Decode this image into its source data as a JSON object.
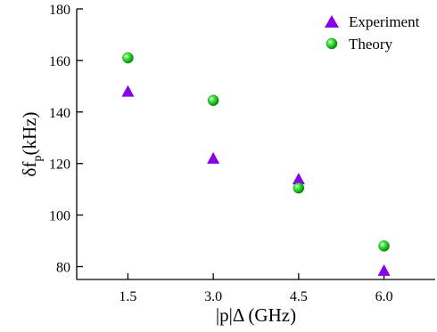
{
  "chart_data": {
    "type": "scatter",
    "title": "",
    "xlabel": "|p|Δ (GHz)",
    "ylabel": {
      "main": "δf",
      "sub": "p",
      "unit": "(kHz)"
    },
    "xlim": [
      0.6,
      6.9
    ],
    "ylim": [
      75,
      180
    ],
    "x_ticks": [
      {
        "value": 1.5,
        "label": "1.5"
      },
      {
        "value": 3.0,
        "label": "3.0"
      },
      {
        "value": 4.5,
        "label": "4.5"
      },
      {
        "value": 6.0,
        "label": "6.0"
      }
    ],
    "y_ticks": [
      {
        "value": 80,
        "label": "80"
      },
      {
        "value": 100,
        "label": "100"
      },
      {
        "value": 120,
        "label": "120"
      },
      {
        "value": 140,
        "label": "140"
      },
      {
        "value": 160,
        "label": "160"
      },
      {
        "value": 180,
        "label": "180"
      }
    ],
    "grid": false,
    "legend_position": "top-right",
    "series": [
      {
        "name": "Experiment",
        "marker": "triangle",
        "color": "#8a00e6",
        "points": [
          {
            "x": 1.5,
            "y": 148
          },
          {
            "x": 3.0,
            "y": 122
          },
          {
            "x": 4.5,
            "y": 114
          },
          {
            "x": 6.0,
            "y": 78.5
          }
        ]
      },
      {
        "name": "Theory",
        "marker": "sphere",
        "color": "#22dd22",
        "points": [
          {
            "x": 1.5,
            "y": 161
          },
          {
            "x": 3.0,
            "y": 144.5
          },
          {
            "x": 4.5,
            "y": 110.5
          },
          {
            "x": 6.0,
            "y": 88
          }
        ]
      }
    ]
  }
}
